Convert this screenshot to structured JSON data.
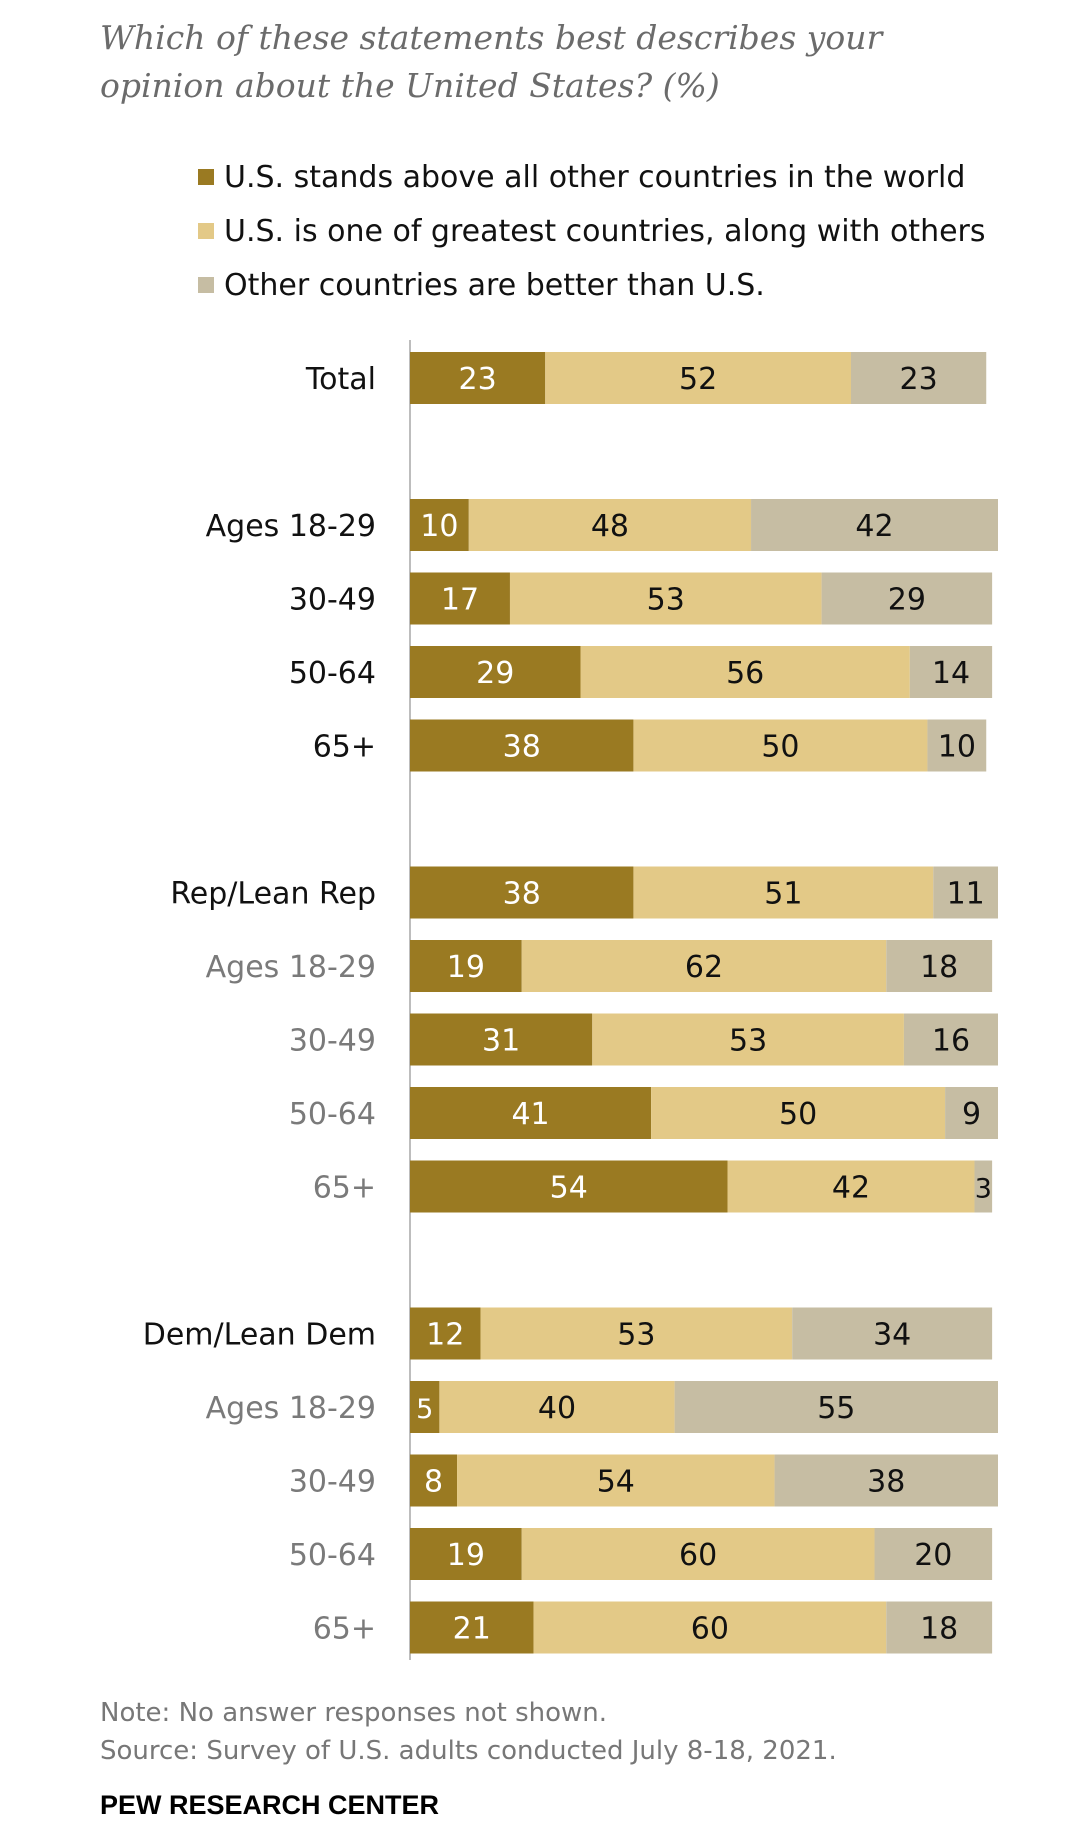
{
  "title": "Which of these statements best describes your opinion about the United States? (%)",
  "legend": [
    {
      "label": "U.S. stands above all other countries in the world",
      "color": "#9a7a22"
    },
    {
      "label": "U.S. is one of greatest countries, along with others",
      "color": "#e3c987"
    },
    {
      "label": "Other countries are better than U.S.",
      "color": "#c6bda3"
    }
  ],
  "chart_data": {
    "type": "bar",
    "orientation": "horizontal",
    "stacked": true,
    "title": "Which of these statements best describes your opinion about the United States? (%)",
    "categories": [
      "Total",
      "Ages 18-29",
      "30-49",
      "50-64",
      "65+",
      "Rep/Lean Rep",
      "Ages 18-29",
      "30-49",
      "50-64",
      "65+",
      "Dem/Lean Dem",
      "Ages 18-29",
      "30-49",
      "50-64",
      "65+"
    ],
    "category_style": [
      "main",
      "main",
      "main",
      "main",
      "main",
      "main",
      "sub",
      "sub",
      "sub",
      "sub",
      "main",
      "sub",
      "sub",
      "sub",
      "sub"
    ],
    "groups": [
      [
        0
      ],
      [
        1,
        2,
        3,
        4
      ],
      [
        5,
        6,
        7,
        8,
        9
      ],
      [
        10,
        11,
        12,
        13,
        14
      ]
    ],
    "series": [
      {
        "name": "U.S. stands above all other countries in the world",
        "color": "#9a7a22",
        "label_color": "#ffffff",
        "values": [
          23,
          10,
          17,
          29,
          38,
          38,
          19,
          31,
          41,
          54,
          12,
          5,
          8,
          19,
          21
        ]
      },
      {
        "name": "U.S. is one of greatest countries, along with others",
        "color": "#e3c987",
        "label_color": "#111111",
        "values": [
          52,
          48,
          53,
          56,
          50,
          51,
          62,
          53,
          50,
          42,
          53,
          40,
          54,
          60,
          60
        ]
      },
      {
        "name": "Other countries are better than U.S.",
        "color": "#c6bda3",
        "label_color": "#111111",
        "values": [
          23,
          42,
          29,
          14,
          10,
          11,
          18,
          16,
          9,
          3,
          34,
          55,
          38,
          20,
          18
        ]
      }
    ],
    "xlim": [
      0,
      100
    ]
  },
  "note": "Note: No answer responses not shown.",
  "source": "Source: Survey of U.S. adults conducted July 8-18, 2021.",
  "brand": "PEW RESEARCH CENTER"
}
